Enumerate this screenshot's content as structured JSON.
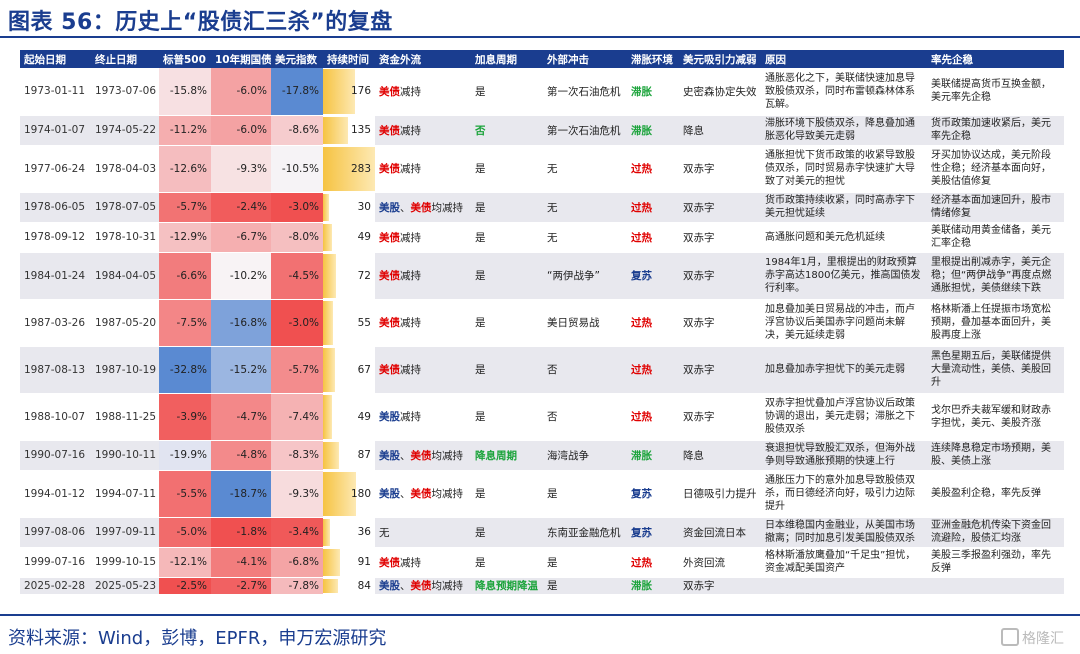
{
  "title": "图表 56：历史上“股债汇三杀”的复盘",
  "source": "资料来源：Wind，彭博，EPFR，申万宏源研究",
  "watermark": "格隆汇",
  "colors": {
    "accent": "#1a3d8f",
    "red": "#e00000",
    "green": "#1aa33a"
  },
  "headers": [
    "起始日期",
    "终止日期",
    "标普500",
    "10年期国债",
    "美元指数",
    "持续时间",
    "资金外流",
    "加息周期",
    "外部冲击",
    "滞胀环境",
    "美元吸引力减弱",
    "原因",
    "率先企稳"
  ],
  "rows": [
    {
      "start": "1973-01-11",
      "end": "1973-07-06",
      "spx": -15.8,
      "ust": -6.0,
      "dxy": -17.8,
      "spx_t": "-15.8%",
      "ust_t": "-6.0%",
      "dxy_t": "-17.8%",
      "dur": 176,
      "outflow": [
        {
          "t": "美债",
          "c": "red"
        },
        {
          "t": "减持",
          "c": ""
        }
      ],
      "hike": {
        "t": "是",
        "c": ""
      },
      "shock": "第一次石油危机",
      "env": {
        "t": "滞胀",
        "c": "green"
      },
      "dollar": "史密森协定失效",
      "reason": "通胀恶化之下，美联储快速加息导致股债双杀，同时布雷顿森林体系瓦解。",
      "stable": "美联储提高货币互换金额，美元率先企稳"
    },
    {
      "start": "1974-01-07",
      "end": "1974-05-22",
      "spx": -11.2,
      "ust": -6.0,
      "dxy": -8.6,
      "spx_t": "-11.2%",
      "ust_t": "-6.0%",
      "dxy_t": "-8.6%",
      "dur": 135,
      "outflow": [
        {
          "t": "美债",
          "c": "red"
        },
        {
          "t": "减持",
          "c": ""
        }
      ],
      "hike": {
        "t": "否",
        "c": "green"
      },
      "shock": "第一次石油危机",
      "env": {
        "t": "滞胀",
        "c": "green"
      },
      "dollar": "降息",
      "reason": "滞胀环境下股债双杀，降息叠加通胀恶化导致美元走弱",
      "stable": "货币政策加速收紧后，美元率先企稳"
    },
    {
      "start": "1977-06-24",
      "end": "1978-04-03",
      "spx": -12.6,
      "ust": -9.3,
      "dxy": -10.5,
      "spx_t": "-12.6%",
      "ust_t": "-9.3%",
      "dxy_t": "-10.5%",
      "dur": 283,
      "outflow": [
        {
          "t": "美债",
          "c": "red"
        },
        {
          "t": "减持",
          "c": ""
        }
      ],
      "hike": {
        "t": "是",
        "c": ""
      },
      "shock": "无",
      "env": {
        "t": "过热",
        "c": "red"
      },
      "dollar": "双赤字",
      "reason": "通胀担忧下货币政策的收紧导致股债双杀，同时贸易赤字快速扩大导致了对美元的担忧",
      "stable": "牙买加协议达成，美元阶段性企稳；经济基本面向好，美股估值修复"
    },
    {
      "start": "1978-06-05",
      "end": "1978-07-05",
      "spx": -5.7,
      "ust": -2.4,
      "dxy": -3.0,
      "spx_t": "-5.7%",
      "ust_t": "-2.4%",
      "dxy_t": "-3.0%",
      "dur": 30,
      "outflow": [
        {
          "t": "美股",
          "c": "blue"
        },
        {
          "t": "、",
          "c": ""
        },
        {
          "t": "美债",
          "c": "red"
        },
        {
          "t": "均减持",
          "c": ""
        }
      ],
      "hike": {
        "t": "是",
        "c": ""
      },
      "shock": "无",
      "env": {
        "t": "过热",
        "c": "red"
      },
      "dollar": "双赤字",
      "reason": "货币政策持续收紧，同时高赤字下美元担忧延续",
      "stable": "经济基本面加速回升，股市情绪修复"
    },
    {
      "start": "1978-09-12",
      "end": "1978-10-31",
      "spx": -12.9,
      "ust": -6.7,
      "dxy": -8.0,
      "spx_t": "-12.9%",
      "ust_t": "-6.7%",
      "dxy_t": "-8.0%",
      "dur": 49,
      "outflow": [
        {
          "t": "美债",
          "c": "red"
        },
        {
          "t": "减持",
          "c": ""
        }
      ],
      "hike": {
        "t": "是",
        "c": ""
      },
      "shock": "无",
      "env": {
        "t": "过热",
        "c": "red"
      },
      "dollar": "双赤字",
      "reason": "高通胀问题和美元危机延续",
      "stable": "美联储动用黄金储备，美元汇率企稳"
    },
    {
      "start": "1984-01-24",
      "end": "1984-04-05",
      "spx": -6.6,
      "ust": -10.2,
      "dxy": -4.5,
      "spx_t": "-6.6%",
      "ust_t": "-10.2%",
      "dxy_t": "-4.5%",
      "dur": 72,
      "outflow": [
        {
          "t": "美债",
          "c": "red"
        },
        {
          "t": "减持",
          "c": ""
        }
      ],
      "hike": {
        "t": "是",
        "c": ""
      },
      "shock": "“两伊战争”",
      "env": {
        "t": "复苏",
        "c": "blue"
      },
      "dollar": "双赤字",
      "reason": "1984年1月，里根提出的财政预算赤字高达1800亿美元，推高国债发行利率。",
      "stable": "里根提出削减赤字，美元企稳；但“两伊战争”再度点燃通胀担忧，美债继续下跌"
    },
    {
      "start": "1987-03-26",
      "end": "1987-05-20",
      "spx": -7.5,
      "ust": -16.8,
      "dxy": -3.0,
      "spx_t": "-7.5%",
      "ust_t": "-16.8%",
      "dxy_t": "-3.0%",
      "dur": 55,
      "outflow": [
        {
          "t": "美债",
          "c": "red"
        },
        {
          "t": "减持",
          "c": ""
        }
      ],
      "hike": {
        "t": "是",
        "c": ""
      },
      "shock": "美日贸易战",
      "env": {
        "t": "过热",
        "c": "red"
      },
      "dollar": "双赤字",
      "reason": "加息叠加美日贸易战的冲击，而卢浮宫协议后美国赤字问题尚未解决，美元延续走弱",
      "stable": "格林斯潘上任提振市场宽松预期，叠加基本面回升，美股再度上涨"
    },
    {
      "start": "1987-08-13",
      "end": "1987-10-19",
      "spx": -32.8,
      "ust": -15.2,
      "dxy": -5.7,
      "spx_t": "-32.8%",
      "ust_t": "-15.2%",
      "dxy_t": "-5.7%",
      "dur": 67,
      "outflow": [
        {
          "t": "美债",
          "c": "red"
        },
        {
          "t": "减持",
          "c": ""
        }
      ],
      "hike": {
        "t": "是",
        "c": ""
      },
      "shock": "否",
      "env": {
        "t": "过热",
        "c": "red"
      },
      "dollar": "双赤字",
      "reason": "加息叠加赤字担忧下的美元走弱",
      "stable": "黑色星期五后，美联储提供大量流动性，美债、美股回升"
    },
    {
      "start": "1988-10-07",
      "end": "1988-11-25",
      "spx": -3.9,
      "ust": -4.7,
      "dxy": -7.4,
      "spx_t": "-3.9%",
      "ust_t": "-4.7%",
      "dxy_t": "-7.4%",
      "dur": 49,
      "outflow": [
        {
          "t": "美股",
          "c": "blue"
        },
        {
          "t": "减持",
          "c": ""
        }
      ],
      "hike": {
        "t": "是",
        "c": ""
      },
      "shock": "否",
      "env": {
        "t": "过热",
        "c": "red"
      },
      "dollar": "双赤字",
      "reason": "双赤字担忧叠加卢浮宫协议后政策协调的退出，美元走弱；滞胀之下股债双杀",
      "stable": "戈尔巴乔夫裁军缓和财政赤字担忧，美元、美股齐涨"
    },
    {
      "start": "1990-07-16",
      "end": "1990-10-11",
      "spx": -19.9,
      "ust": -4.8,
      "dxy": -8.3,
      "spx_t": "-19.9%",
      "ust_t": "-4.8%",
      "dxy_t": "-8.3%",
      "dur": 87,
      "outflow": [
        {
          "t": "美股",
          "c": "blue"
        },
        {
          "t": "、",
          "c": ""
        },
        {
          "t": "美债",
          "c": "red"
        },
        {
          "t": "均减持",
          "c": ""
        }
      ],
      "hike": {
        "t": "降息周期",
        "c": "green"
      },
      "shock": "海湾战争",
      "env": {
        "t": "滞胀",
        "c": "green"
      },
      "dollar": "降息",
      "reason": "衰退担忧导致股汇双杀，但海外战争则导致通胀预期的快速上行",
      "stable": "连续降息稳定市场预期，美股、美债上涨"
    },
    {
      "start": "1994-01-12",
      "end": "1994-07-11",
      "spx": -5.5,
      "ust": -18.7,
      "dxy": -9.3,
      "spx_t": "-5.5%",
      "ust_t": "-18.7%",
      "dxy_t": "-9.3%",
      "dur": 180,
      "outflow": [
        {
          "t": "美股",
          "c": "blue"
        },
        {
          "t": "、",
          "c": ""
        },
        {
          "t": "美债",
          "c": "red"
        },
        {
          "t": "均减持",
          "c": ""
        }
      ],
      "hike": {
        "t": "是",
        "c": ""
      },
      "shock": "是",
      "env": {
        "t": "复苏",
        "c": "blue"
      },
      "dollar": "日德吸引力提升",
      "reason": "通胀压力下的意外加息导致股债双杀，而日德经济向好，吸引力边际提升",
      "stable": "美股盈利企稳，率先反弹"
    },
    {
      "start": "1997-08-06",
      "end": "1997-09-11",
      "spx": -5.0,
      "ust": -1.8,
      "dxy": -3.4,
      "spx_t": "-5.0%",
      "ust_t": "-1.8%",
      "dxy_t": "-3.4%",
      "dur": 36,
      "outflow": [
        {
          "t": "无",
          "c": ""
        }
      ],
      "hike": {
        "t": "是",
        "c": ""
      },
      "shock": "东南亚金融危机",
      "env": {
        "t": "复苏",
        "c": "blue"
      },
      "dollar": "资金回流日本",
      "reason": "日本维稳国内金融业，从美国市场撤离；同时加息引发美国股债双杀",
      "stable": "亚洲金融危机传染下资金回流避险，股债汇均涨"
    },
    {
      "start": "1999-07-16",
      "end": "1999-10-15",
      "spx": -12.1,
      "ust": -4.1,
      "dxy": -6.8,
      "spx_t": "-12.1%",
      "ust_t": "-4.1%",
      "dxy_t": "-6.8%",
      "dur": 91,
      "outflow": [
        {
          "t": "美债",
          "c": "red"
        },
        {
          "t": "减持",
          "c": ""
        }
      ],
      "hike": {
        "t": "是",
        "c": ""
      },
      "shock": "是",
      "env": {
        "t": "过热",
        "c": "red"
      },
      "dollar": "外资回流",
      "reason": "格林斯潘放鹰叠加“千足虫”担忧，资金减配美国资产",
      "stable": "美股三季报盈利强劲，率先反弹"
    },
    {
      "start": "2025-02-28",
      "end": "2025-05-23",
      "spx": -2.5,
      "ust": -2.7,
      "dxy": -7.8,
      "spx_t": "-2.5%",
      "ust_t": "-2.7%",
      "dxy_t": "-7.8%",
      "dur": 84,
      "outflow": [
        {
          "t": "美股",
          "c": "blue"
        },
        {
          "t": "、",
          "c": ""
        },
        {
          "t": "美债",
          "c": "red"
        },
        {
          "t": "均减持",
          "c": ""
        }
      ],
      "hike": {
        "t": "降息预期降温",
        "c": "green"
      },
      "shock": "是",
      "env": {
        "t": "滞胀",
        "c": "green"
      },
      "dollar": "双赤字",
      "reason": "",
      "stable": ""
    }
  ]
}
